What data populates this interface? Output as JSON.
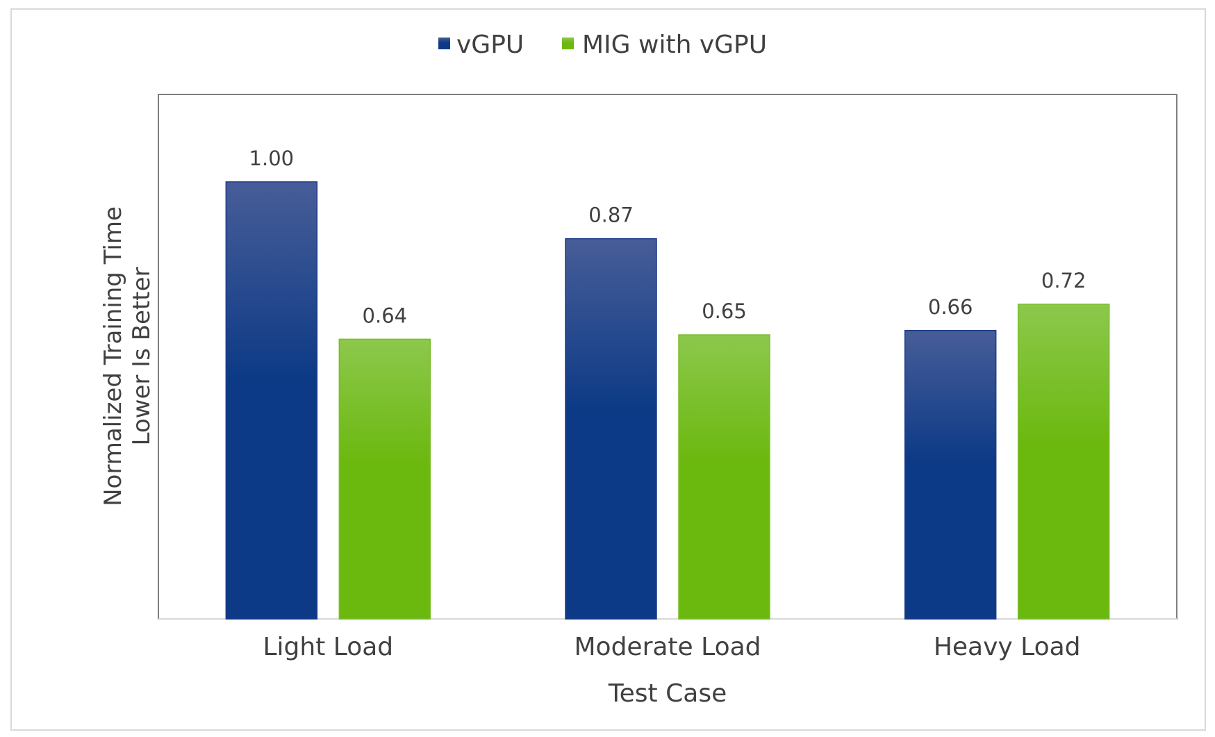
{
  "chart_data": {
    "type": "bar",
    "title": "",
    "xlabel": "Test Case",
    "ylabel": [
      "Normalized Training Time",
      "Lower Is Better"
    ],
    "categories": [
      "Light Load",
      "Moderate Load",
      "Heavy Load"
    ],
    "series": [
      {
        "name": "vGPU",
        "values": [
          1.0,
          0.87,
          0.66
        ],
        "color": "#0d3a86",
        "color_top": "#475d98"
      },
      {
        "name": "MIG with vGPU",
        "values": [
          0.64,
          0.65,
          0.72
        ],
        "color": "#6bb80e",
        "color_top": "#8cc84c"
      }
    ],
    "value_labels": [
      [
        "1.00",
        "0.87",
        "0.66"
      ],
      [
        "0.64",
        "0.65",
        "0.72"
      ]
    ],
    "ylim": [
      0,
      1.2
    ],
    "grid": false,
    "y_ticks_shown": false,
    "legend_position": "top-center"
  }
}
